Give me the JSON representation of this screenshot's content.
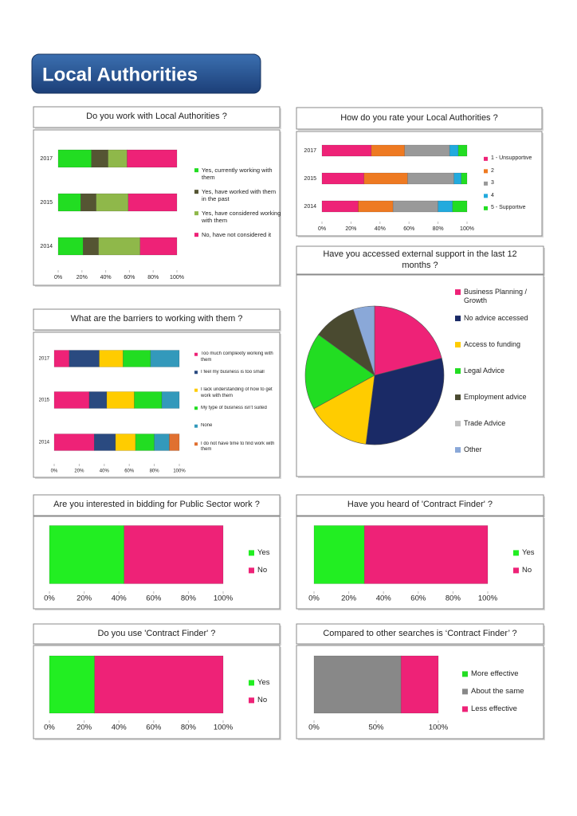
{
  "header": {
    "title": "Local Authorities"
  },
  "chart_data": [
    {
      "type": "bar",
      "orientation": "horizontal",
      "stacked": true,
      "title": "Do you work with Local Authorities ?",
      "categories": [
        "2017",
        "2015",
        "2014"
      ],
      "series": [
        {
          "name": "Yes, currently working with them",
          "color": "#22dd22",
          "values": [
            28,
            19,
            21
          ]
        },
        {
          "name": "Yes, have worked with them in the past",
          "color": "#555533",
          "values": [
            14,
            13,
            13
          ]
        },
        {
          "name": "Yes, have considered working with them",
          "color": "#8fb84a",
          "values": [
            16,
            27,
            35
          ]
        },
        {
          "name": "No, have not considered it",
          "color": "#ee2277",
          "values": [
            42,
            41,
            31
          ]
        }
      ],
      "xlim": [
        0,
        100
      ],
      "xticks": [
        {
          "value": 0,
          "label": "0%"
        },
        {
          "value": 20,
          "label": "20%"
        },
        {
          "value": 40,
          "label": "40%"
        },
        {
          "value": 60,
          "label": "60%"
        },
        {
          "value": 80,
          "label": "80%"
        },
        {
          "value": 100,
          "label": "100%"
        }
      ]
    },
    {
      "type": "bar",
      "orientation": "horizontal",
      "stacked": true,
      "title": "How do you rate your Local Authorities ?",
      "categories": [
        "2017",
        "2015",
        "2014"
      ],
      "series": [
        {
          "name": "1 - Unsupportive",
          "color": "#ee2277",
          "values": [
            34,
            29,
            25
          ]
        },
        {
          "name": "2",
          "color": "#ee7a22",
          "values": [
            23,
            30,
            24
          ]
        },
        {
          "name": "3",
          "color": "#999999",
          "values": [
            31,
            32,
            31
          ]
        },
        {
          "name": "4",
          "color": "#22aadd",
          "values": [
            6,
            5,
            10
          ]
        },
        {
          "name": "5 - Supportive",
          "color": "#22dd22",
          "values": [
            6,
            4,
            10
          ]
        }
      ],
      "xlim": [
        0,
        100
      ],
      "xticks": [
        {
          "value": 0,
          "label": "0%"
        },
        {
          "value": 20,
          "label": "20%"
        },
        {
          "value": 40,
          "label": "40%"
        },
        {
          "value": 60,
          "label": "60%"
        },
        {
          "value": 80,
          "label": "80%"
        },
        {
          "value": 100,
          "label": "100%"
        }
      ]
    },
    {
      "type": "pie",
      "title": "Have you accessed external support in the last 12 months ?",
      "categories": [
        "Business Planning / Growth",
        "No advice accessed",
        "Access to funding",
        "Legal Advice",
        "Employment advice",
        "Trade Advice",
        "Other"
      ],
      "values": [
        21,
        31,
        15,
        18,
        10,
        0,
        5
      ],
      "colors": [
        "#ee2277",
        "#1a2a66",
        "#ffcc00",
        "#22dd22",
        "#4a4a30",
        "#c0c0c0",
        "#8aa8d8"
      ]
    },
    {
      "type": "bar",
      "orientation": "horizontal",
      "stacked": true,
      "title": "What are the barriers to working with them ?",
      "categories": [
        "2017",
        "2015",
        "2014"
      ],
      "series": [
        {
          "name": "Too much complexity working with them",
          "color": "#ee2277",
          "values": [
            12,
            28,
            32
          ]
        },
        {
          "name": "I feel my business is too small",
          "color": "#2a4a80",
          "values": [
            24,
            14,
            17
          ]
        },
        {
          "name": "I lack understanding of how to get work with them",
          "color": "#ffcc00",
          "values": [
            19,
            22,
            16
          ]
        },
        {
          "name": "My type of business isn't suited",
          "color": "#22dd22",
          "values": [
            22,
            22,
            15
          ]
        },
        {
          "name": "None",
          "color": "#3399bb",
          "values": [
            23,
            14,
            12
          ]
        },
        {
          "name": "I do not have time to find work with them",
          "color": "#e07030",
          "values": [
            0,
            0,
            8
          ]
        }
      ],
      "xlim": [
        0,
        100
      ],
      "xticks": [
        {
          "value": 0,
          "label": "0%"
        },
        {
          "value": 20,
          "label": "20%"
        },
        {
          "value": 40,
          "label": "40%"
        },
        {
          "value": 60,
          "label": "60%"
        },
        {
          "value": 80,
          "label": "80%"
        },
        {
          "value": 100,
          "label": "100%"
        }
      ]
    },
    {
      "type": "bar",
      "orientation": "horizontal",
      "stacked": true,
      "title": "Are you interested in bidding for Public Sector work ?",
      "categories": [
        null
      ],
      "series": [
        {
          "name": "Yes",
          "color": "#22ee22",
          "values": [
            43
          ]
        },
        {
          "name": "No",
          "color": "#ee2277",
          "values": [
            57
          ]
        }
      ],
      "xlim": [
        0,
        100
      ],
      "xticks": [
        {
          "value": 0,
          "label": "0%"
        },
        {
          "value": 20,
          "label": "20%"
        },
        {
          "value": 40,
          "label": "40%"
        },
        {
          "value": 60,
          "label": "60%"
        },
        {
          "value": 80,
          "label": "80%"
        },
        {
          "value": 100,
          "label": "100%"
        }
      ]
    },
    {
      "type": "bar",
      "orientation": "horizontal",
      "stacked": true,
      "title": "Have you heard of 'Contract Finder' ?",
      "categories": [
        null
      ],
      "series": [
        {
          "name": "Yes",
          "color": "#22ee22",
          "values": [
            29
          ]
        },
        {
          "name": "No",
          "color": "#ee2277",
          "values": [
            71
          ]
        }
      ],
      "xlim": [
        0,
        100
      ],
      "xticks": [
        {
          "value": 0,
          "label": "0%"
        },
        {
          "value": 20,
          "label": "20%"
        },
        {
          "value": 40,
          "label": "40%"
        },
        {
          "value": 60,
          "label": "60%"
        },
        {
          "value": 80,
          "label": "80%"
        },
        {
          "value": 100,
          "label": "100%"
        }
      ]
    },
    {
      "type": "bar",
      "orientation": "horizontal",
      "stacked": true,
      "title": "Do you use 'Contract Finder' ?",
      "categories": [
        null
      ],
      "series": [
        {
          "name": "Yes",
          "color": "#22ee22",
          "values": [
            26
          ]
        },
        {
          "name": "No",
          "color": "#ee2277",
          "values": [
            74
          ]
        }
      ],
      "xlim": [
        0,
        100
      ],
      "xticks": [
        {
          "value": 0,
          "label": "0%"
        },
        {
          "value": 20,
          "label": "20%"
        },
        {
          "value": 40,
          "label": "40%"
        },
        {
          "value": 60,
          "label": "60%"
        },
        {
          "value": 80,
          "label": "80%"
        },
        {
          "value": 100,
          "label": "100%"
        }
      ]
    },
    {
      "type": "bar",
      "orientation": "horizontal",
      "stacked": true,
      "title": "Compared to other searches is ‘Contract Finder’ ?",
      "categories": [
        null
      ],
      "series": [
        {
          "name": "More effective",
          "color": "#22dd22",
          "values": [
            0
          ]
        },
        {
          "name": "About the same",
          "color": "#888888",
          "values": [
            70
          ]
        },
        {
          "name": "Less effective",
          "color": "#ee2277",
          "values": [
            30
          ]
        }
      ],
      "xlim": [
        0,
        100
      ],
      "xticks": [
        {
          "value": 0,
          "label": "0%"
        },
        {
          "value": 50,
          "label": "50%"
        },
        {
          "value": 100,
          "label": "100%"
        }
      ]
    }
  ]
}
